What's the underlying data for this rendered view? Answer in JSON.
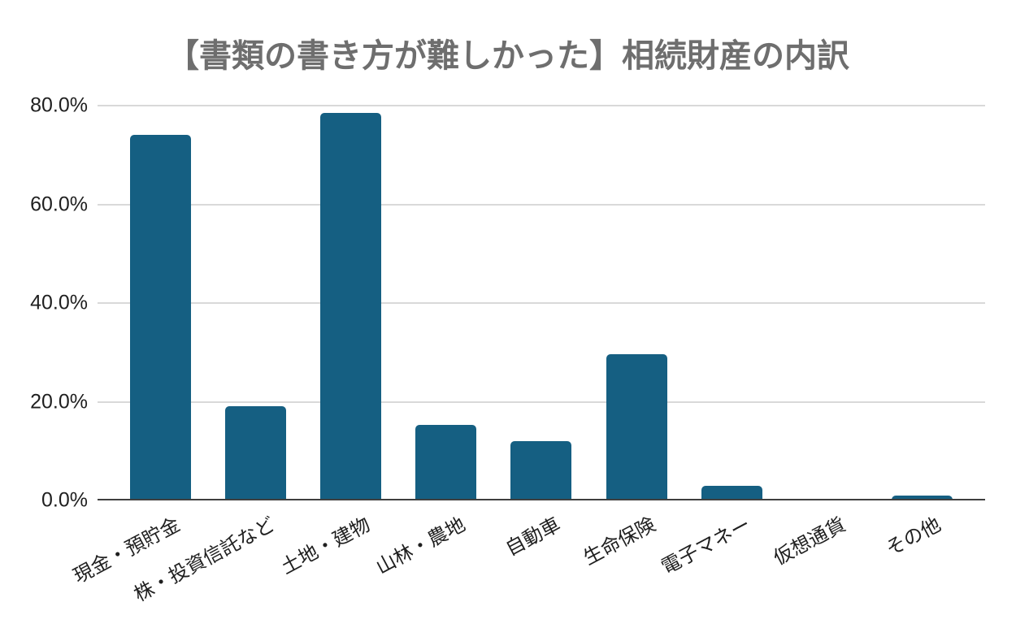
{
  "chart_data": {
    "type": "bar",
    "title": "【書類の書き方が難しかった】相続財産の内訳",
    "categories": [
      "現金・預貯金",
      "株・投資信託など",
      "土地・建物",
      "山林・農地",
      "自動車",
      "生命保険",
      "電子マネー",
      "仮想通貨",
      "その他"
    ],
    "values": [
      74.0,
      19.0,
      78.5,
      15.2,
      11.8,
      29.6,
      2.8,
      0.2,
      0.9
    ],
    "xlabel": "",
    "ylabel": "",
    "ylim": [
      0,
      80
    ],
    "yticks": [
      {
        "label": "80.0%",
        "value": 80
      },
      {
        "label": "60.0%",
        "value": 60
      },
      {
        "label": "40.0%",
        "value": 40
      },
      {
        "label": "20.0%",
        "value": 20
      },
      {
        "label": "0.0%",
        "value": 0
      }
    ],
    "grid": true,
    "legend": false,
    "x_label_rotation_deg": -28,
    "colors": {
      "bar": "#155f82",
      "title": "#6e6e6e",
      "grid": "#d9d9d9",
      "axis": "#3f3f3f",
      "tick_text": "#1f1f1f",
      "background": "#ffffff"
    }
  }
}
